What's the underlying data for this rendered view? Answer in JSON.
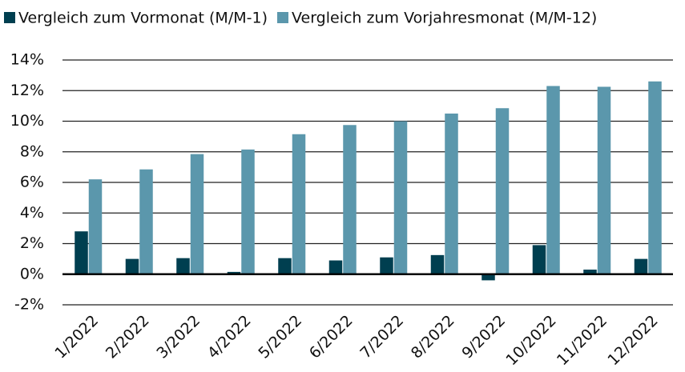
{
  "chart_data": {
    "type": "bar",
    "categories": [
      "1/2022",
      "2/2022",
      "3/2022",
      "4/2022",
      "5/2022",
      "6/2022",
      "7/2022",
      "8/2022",
      "9/2022",
      "10/2022",
      "11/2022",
      "12/2022"
    ],
    "series": [
      {
        "name": "Vergleich zum Vormonat (M/M-1)",
        "color": "#003f50",
        "values": [
          2.8,
          1.0,
          1.05,
          0.15,
          1.05,
          0.9,
          1.1,
          1.25,
          -0.4,
          1.9,
          0.3,
          1.0
        ]
      },
      {
        "name": "Vergleich zum Vorjahresmonat (M/M-12)",
        "color": "#5b97ac",
        "values": [
          6.2,
          6.85,
          7.85,
          8.15,
          9.15,
          9.75,
          10.0,
          10.5,
          10.85,
          12.3,
          12.25,
          12.6
        ]
      }
    ],
    "ylim": [
      -2,
      14
    ],
    "yticks": [
      {
        "value": -2,
        "label": "-2%"
      },
      {
        "value": 0,
        "label": "0%"
      },
      {
        "value": 2,
        "label": "2%"
      },
      {
        "value": 4,
        "label": "4%"
      },
      {
        "value": 6,
        "label": "6%"
      },
      {
        "value": 8,
        "label": "8%"
      },
      {
        "value": 10,
        "label": "10%"
      },
      {
        "value": 12,
        "label": "12%"
      },
      {
        "value": 14,
        "label": "14%"
      }
    ],
    "grid": true,
    "legend": "top"
  }
}
